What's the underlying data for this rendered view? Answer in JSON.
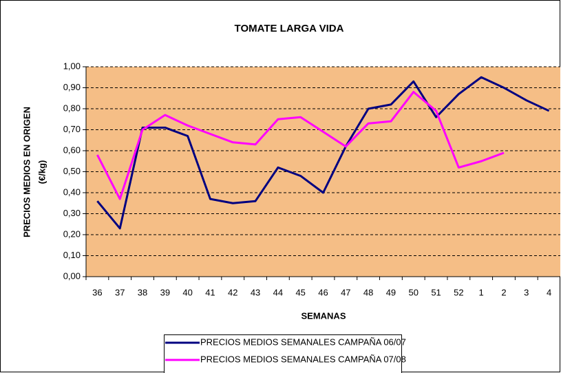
{
  "chart_data": {
    "type": "line",
    "title": "TOMATE LARGA VIDA",
    "x_label": "SEMANAS",
    "y_label": [
      "PRECIOS MEDIOS EN ORIGEN",
      "(€/kg)"
    ],
    "categories": [
      "36",
      "37",
      "38",
      "39",
      "40",
      "41",
      "42",
      "43",
      "44",
      "45",
      "46",
      "47",
      "48",
      "49",
      "50",
      "51",
      "52",
      "1",
      "2",
      "3",
      "4"
    ],
    "series": [
      {
        "name": "PRECIOS MEDIOS SEMANALES CAMPAÑA 06/07",
        "color": "#000080",
        "values": [
          0.36,
          0.23,
          0.71,
          0.71,
          0.67,
          0.37,
          0.35,
          0.36,
          0.52,
          0.48,
          0.4,
          0.62,
          0.8,
          0.82,
          0.93,
          0.76,
          0.87,
          0.95,
          0.9,
          0.84,
          0.79
        ]
      },
      {
        "name": "PRECIOS MEDIOS SEMANALES CAMPAÑA 07/08",
        "color": "#FF00FF",
        "values": [
          0.58,
          0.37,
          0.7,
          0.77,
          0.72,
          0.68,
          0.64,
          0.63,
          0.75,
          0.76,
          0.69,
          0.62,
          0.73,
          0.74,
          0.88,
          0.79,
          0.52,
          0.55,
          0.59,
          null,
          null
        ]
      }
    ],
    "ylim": [
      0,
      1
    ],
    "yticks": [
      {
        "value": 0,
        "label": "0,00"
      },
      {
        "value": 0.1,
        "label": "0,10"
      },
      {
        "value": 0.2,
        "label": "0,20"
      },
      {
        "value": 0.3,
        "label": "0,30"
      },
      {
        "value": 0.4,
        "label": "0,40"
      },
      {
        "value": 0.5,
        "label": "0,50"
      },
      {
        "value": 0.6,
        "label": "0,60"
      },
      {
        "value": 0.7,
        "label": "0,70"
      },
      {
        "value": 0.8,
        "label": "0,80"
      },
      {
        "value": 0.9,
        "label": "0,90"
      },
      {
        "value": 1,
        "label": "1,00"
      }
    ],
    "grid": true,
    "plot_background": "#F5BE86",
    "legend": "bottom"
  }
}
